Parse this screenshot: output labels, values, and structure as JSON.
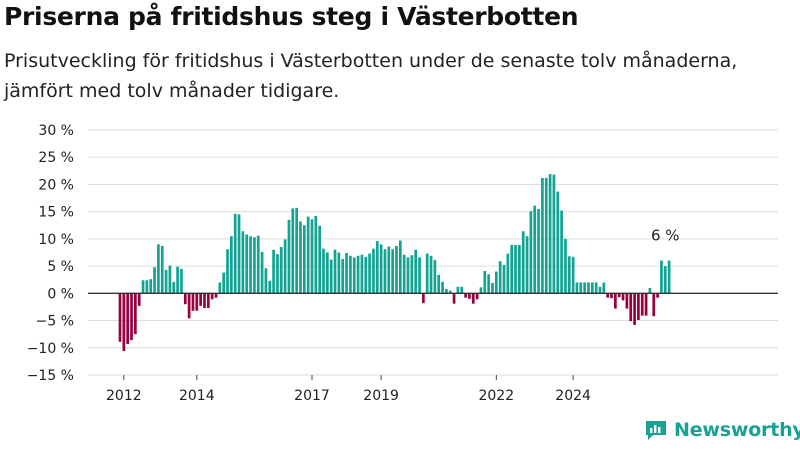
{
  "title": "Priserna på fritidshus steg i Västerbotten",
  "subtitle": "Prisutveckling för fritidshus i Västerbotten under de senaste tolv månaderna, jämfört med tolv månader tidigare.",
  "brand": "Newsworthy",
  "chart_data": {
    "type": "bar",
    "ylim": [
      -15,
      30
    ],
    "yticks": [
      30,
      25,
      20,
      15,
      10,
      5,
      0,
      -5,
      -10,
      -15
    ],
    "ytick_labels": [
      "30 %",
      "25 %",
      "20 %",
      "15 %",
      "10 %",
      "5 %",
      "0 %",
      "−5 %",
      "−10 %",
      "−15 %"
    ],
    "xticks": [
      {
        "label": "2012",
        "index": 1
      },
      {
        "label": "2014",
        "index": 20
      },
      {
        "label": "2017",
        "index": 50
      },
      {
        "label": "2019",
        "index": 68
      },
      {
        "label": "2022",
        "index": 98
      },
      {
        "label": "2024",
        "index": 118
      }
    ],
    "grid": true,
    "positive_color": "#12a393",
    "negative_color": "#98003e",
    "annotation": "6 %",
    "values": [
      -8.9,
      -10.6,
      -9.3,
      -8.6,
      -7.5,
      -2.3,
      2.4,
      2.4,
      2.6,
      4.8,
      9.0,
      8.7,
      4.3,
      5.1,
      2.1,
      4.9,
      4.5,
      -2.0,
      -4.6,
      -3.2,
      -3.2,
      -2.3,
      -2.7,
      -2.7,
      -1.1,
      -0.8,
      2.0,
      3.8,
      8.1,
      10.5,
      14.6,
      14.5,
      11.4,
      10.8,
      10.5,
      10.3,
      10.6,
      7.6,
      4.6,
      2.3,
      8.0,
      7.2,
      8.5,
      9.9,
      13.5,
      15.6,
      15.7,
      13.2,
      12.5,
      14.1,
      13.6,
      14.2,
      12.4,
      8.2,
      7.5,
      6.2,
      8.0,
      7.5,
      6.3,
      7.4,
      6.9,
      6.6,
      6.9,
      7.1,
      6.7,
      7.3,
      8.2,
      9.6,
      9.0,
      8.1,
      8.6,
      8.1,
      8.7,
      9.7,
      7.1,
      6.6,
      7.0,
      8.0,
      6.6,
      -1.8,
      7.3,
      6.9,
      6.1,
      3.4,
      2.1,
      0.8,
      0.5,
      -1.9,
      1.2,
      1.2,
      -0.8,
      -1.0,
      -1.9,
      -1.1,
      1.1,
      4.1,
      3.5,
      1.9,
      4.0,
      5.9,
      5.2,
      7.3,
      8.9,
      8.9,
      8.9,
      11.4,
      10.5,
      15.1,
      16.1,
      15.5,
      21.2,
      21.2,
      21.9,
      21.8,
      18.7,
      15.2,
      10.0,
      6.8,
      6.7,
      2.0,
      2.0,
      2.0,
      2.0,
      2.0,
      2.0,
      1.2,
      2.0,
      -0.8,
      -0.9,
      -2.8,
      -0.7,
      -1.3,
      -2.8,
      -5.1,
      -5.8,
      -4.9,
      -4.1,
      -4.1,
      1.0,
      -4.2,
      -0.8,
      6.0,
      5.0,
      6.0
    ]
  }
}
